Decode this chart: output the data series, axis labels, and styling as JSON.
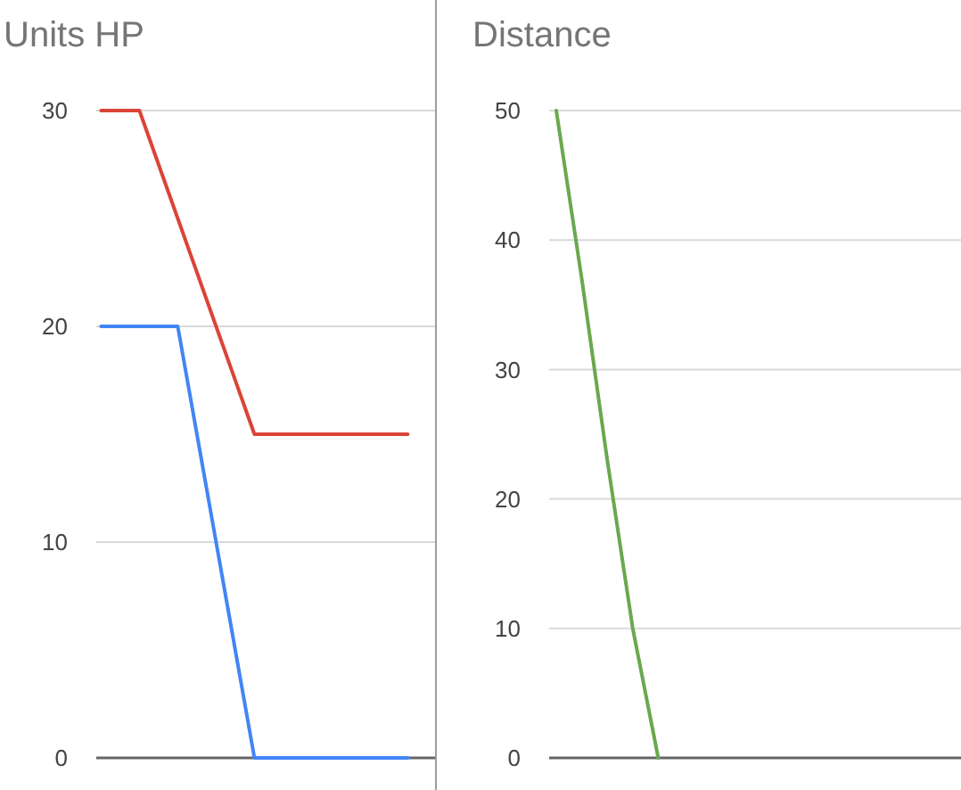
{
  "chart_data": [
    {
      "type": "line",
      "title": "Units HP",
      "categories": [
        null,
        null,
        null,
        null,
        null,
        null,
        null,
        null,
        null
      ],
      "series": [
        {
          "color": "#db4437",
          "values": [
            30,
            30,
            25,
            20,
            15,
            15,
            15,
            15,
            15
          ]
        },
        {
          "color": "#4285f4",
          "values": [
            20,
            20,
            20,
            10,
            0,
            0,
            0,
            0,
            0
          ]
        }
      ],
      "ylim": [
        0,
        30
      ],
      "yticks": [
        0,
        10,
        20,
        30
      ],
      "grid": "y",
      "tick_labels": "y"
    },
    {
      "type": "line",
      "title": "Distance",
      "categories": [
        null,
        null,
        null,
        null,
        null,
        null,
        null,
        null,
        null,
        null,
        null,
        null,
        null,
        null,
        null,
        null,
        null
      ],
      "series": [
        {
          "color": "#6aa84f",
          "values": [
            50,
            37,
            23,
            10,
            0,
            null,
            null,
            null,
            null,
            null,
            null,
            null,
            null,
            null,
            null,
            null,
            null
          ]
        }
      ],
      "ylim": [
        0,
        50
      ],
      "yticks": [
        0,
        10,
        20,
        30,
        40,
        50
      ],
      "grid": "y",
      "tick_labels": "y"
    }
  ]
}
